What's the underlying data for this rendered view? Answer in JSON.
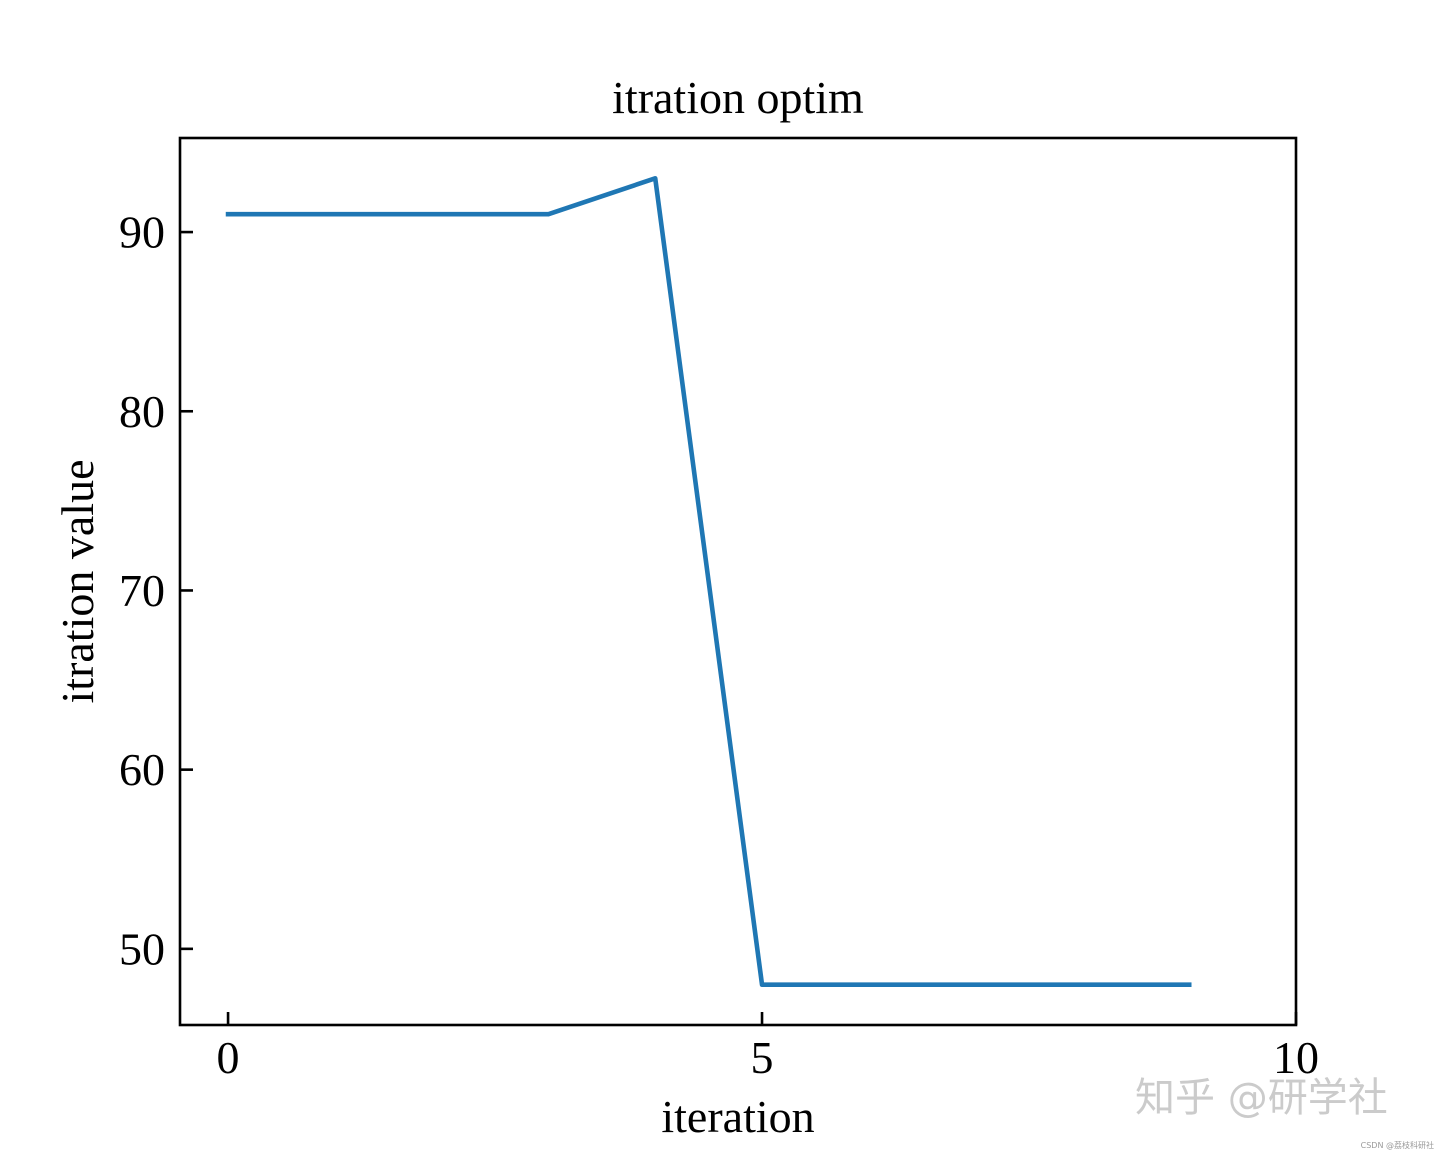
{
  "chart_data": {
    "type": "line",
    "title": "itration optim",
    "xlabel": "iteration",
    "ylabel": "itration value",
    "x": [
      0,
      1,
      2,
      3,
      4,
      5,
      6,
      7,
      8,
      9
    ],
    "series": [
      {
        "values": [
          91,
          91,
          91,
          91,
          93,
          48,
          48,
          48,
          48,
          48
        ],
        "color": "#1f77b4"
      }
    ],
    "xlim": [
      -0.45,
      10
    ],
    "ylim": [
      45.75,
      95.25
    ],
    "xticks": [
      0,
      5,
      10
    ],
    "xtick_labels": [
      "0",
      "5",
      "10"
    ],
    "yticks": [
      50,
      60,
      70,
      80,
      90
    ],
    "ytick_labels": [
      "50",
      "60",
      "70",
      "80",
      "90"
    ],
    "grid": false,
    "tick_direction": "in"
  },
  "watermark": {
    "text": "知乎 @研学社",
    "source": "CSDN @荔枝科研社"
  }
}
